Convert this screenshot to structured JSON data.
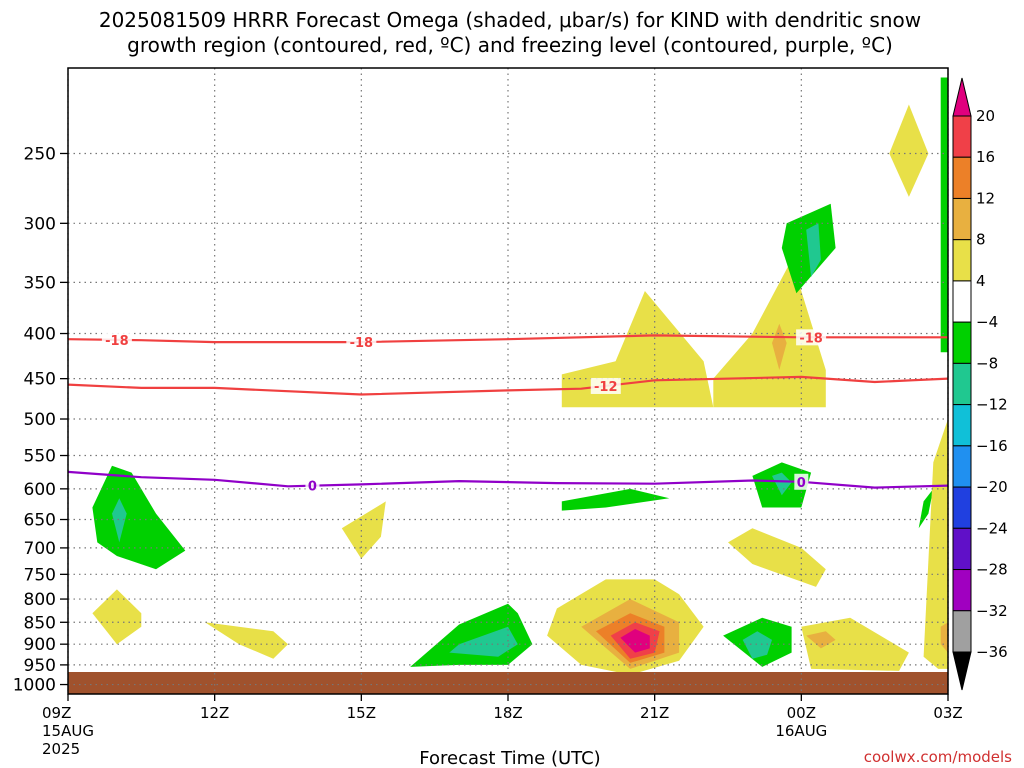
{
  "chart_data": {
    "type": "heatmap",
    "title_line1": "2025081509 HRRR Forecast Omega (shaded, μbar/s) for KIND with dendritic snow",
    "title_line2": "growth region (contoured, red, ºC) and freezing level (contoured, purple, ºC)",
    "xlabel": "Forecast Time (UTC)",
    "credit": "coolwx.com/models",
    "x_ticks": [
      {
        "hour": 0,
        "label": "09Z",
        "sub1": "15AUG",
        "sub2": "2025"
      },
      {
        "hour": 3,
        "label": "12Z",
        "sub1": "",
        "sub2": ""
      },
      {
        "hour": 6,
        "label": "15Z",
        "sub1": "",
        "sub2": ""
      },
      {
        "hour": 9,
        "label": "18Z",
        "sub1": "",
        "sub2": ""
      },
      {
        "hour": 12,
        "label": "21Z",
        "sub1": "",
        "sub2": ""
      },
      {
        "hour": 15,
        "label": "00Z",
        "sub1": "16AUG",
        "sub2": ""
      },
      {
        "hour": 18,
        "label": "03Z",
        "sub1": "",
        "sub2": ""
      }
    ],
    "xlim_hours": [
      0,
      18
    ],
    "y_ticks": [
      250,
      300,
      350,
      400,
      450,
      500,
      550,
      600,
      650,
      700,
      750,
      800,
      850,
      900,
      950,
      1000
    ],
    "ylim_mb": [
      200,
      1025
    ],
    "y_scale": "log",
    "grid": "dotted",
    "colorbar": {
      "labels": [
        "20",
        "16",
        "12",
        "8",
        "4",
        "−4",
        "−8",
        "−12",
        "−16",
        "−20",
        "−24",
        "−28",
        "−32",
        "−36"
      ],
      "colors": [
        "#e0007e",
        "#f04048",
        "#ec8028",
        "#e8b040",
        "#e8e048",
        "#ffffff",
        "#00d000",
        "#20c890",
        "#10c0d8",
        "#2090f0",
        "#2040e0",
        "#6010c8",
        "#a000c0",
        "#a0a0a0",
        "#000000"
      ]
    },
    "contours": [
      {
        "name": "-18",
        "color": "#f04040",
        "hour": [
          0,
          1.5,
          3,
          6,
          9,
          12,
          15,
          18
        ],
        "mb": [
          406,
          407,
          409,
          409,
          406,
          402,
          404,
          404
        ],
        "labels": [
          {
            "hour": 1.0,
            "text": "-18"
          },
          {
            "hour": 6.0,
            "text": "-18"
          },
          {
            "hour": 15.2,
            "text": "-18"
          }
        ]
      },
      {
        "name": "-12",
        "color": "#f04040",
        "hour": [
          0,
          1.5,
          3,
          6,
          9,
          10.5,
          12,
          15,
          16.5,
          18
        ],
        "mb": [
          457,
          461,
          461,
          469,
          464,
          462,
          452,
          448,
          454,
          450
        ],
        "labels": [
          {
            "hour": 11.0,
            "text": "-12"
          }
        ]
      },
      {
        "name": "0",
        "color": "#9000c8",
        "hour": [
          0,
          1.5,
          3,
          4.5,
          6,
          8,
          10,
          12,
          14,
          15,
          16.5,
          18
        ],
        "mb": [
          574,
          582,
          586,
          596,
          593,
          588,
          591,
          592,
          587,
          589,
          598,
          595
        ],
        "labels": [
          {
            "hour": 5.0,
            "text": "0"
          },
          {
            "hour": 15.0,
            "text": "0"
          }
        ]
      }
    ],
    "regions": [
      {
        "color": "#00d000",
        "hour": [
          0.5,
          0.9,
          1.3,
          1.8,
          2.4,
          1.8,
          1.0,
          0.6,
          0.5
        ],
        "mb": [
          630,
          565,
          575,
          640,
          705,
          740,
          715,
          690,
          630
        ]
      },
      {
        "color": "#20c890",
        "hour": [
          0.9,
          1.05,
          1.2,
          1.05,
          0.9
        ],
        "mb": [
          640,
          615,
          640,
          690,
          640
        ]
      },
      {
        "color": "#e8e048",
        "hour": [
          0.5,
          1.0,
          1.5,
          1.5,
          1.0,
          0.5
        ],
        "mb": [
          830,
          780,
          830,
          860,
          900,
          830
        ]
      },
      {
        "color": "#e8e048",
        "hour": [
          2.8,
          4.2,
          4.5,
          4.2,
          3.5,
          2.8
        ],
        "mb": [
          850,
          870,
          900,
          935,
          900,
          850
        ]
      },
      {
        "color": "#e8e048",
        "hour": [
          5.6,
          6.5,
          6.4,
          6.0,
          5.6
        ],
        "mb": [
          665,
          620,
          680,
          720,
          665
        ]
      },
      {
        "color": "#00d000",
        "hour": [
          8.0,
          9.0,
          9.2,
          9.5,
          9.0,
          8.0,
          7.0,
          8.0
        ],
        "mb": [
          855,
          810,
          830,
          900,
          950,
          950,
          955,
          855
        ]
      },
      {
        "color": "#20c890",
        "hour": [
          8.0,
          9.0,
          9.2,
          8.8,
          7.8,
          8.0
        ],
        "mb": [
          900,
          860,
          900,
          930,
          920,
          900
        ]
      },
      {
        "color": "#e8e048",
        "hour": [
          10.0,
          11.0,
          12.0,
          12.5,
          13.0,
          12.5,
          11.5,
          10.5,
          9.8,
          10.0
        ],
        "mb": [
          820,
          760,
          760,
          790,
          860,
          940,
          975,
          950,
          880,
          820
        ]
      },
      {
        "color": "#e8b040",
        "hour": [
          10.5,
          11.5,
          12.5,
          12.5,
          11.5,
          10.5
        ],
        "mb": [
          860,
          800,
          850,
          920,
          960,
          860
        ]
      },
      {
        "color": "#ec8028",
        "hour": [
          10.8,
          11.5,
          12.2,
          12.2,
          11.5,
          10.8
        ],
        "mb": [
          870,
          830,
          860,
          920,
          945,
          870
        ]
      },
      {
        "color": "#f04048",
        "hour": [
          11.1,
          11.6,
          12.1,
          12.0,
          11.5,
          11.1
        ],
        "mb": [
          880,
          850,
          870,
          920,
          935,
          880
        ]
      },
      {
        "color": "#e0007e",
        "hour": [
          11.3,
          11.6,
          11.9,
          11.9,
          11.6,
          11.3
        ],
        "mb": [
          885,
          865,
          880,
          910,
          920,
          885
        ]
      },
      {
        "color": "#e8e048",
        "hour": [
          10.1,
          11.2,
          11.8,
          13.0,
          13.2,
          10.1
        ],
        "mb": [
          445,
          430,
          358,
          430,
          485,
          485
        ]
      },
      {
        "color": "#00d000",
        "hour": [
          10.1,
          11.5,
          12.3,
          11.0,
          10.1
        ],
        "mb": [
          620,
          600,
          615,
          630,
          635
        ]
      },
      {
        "color": "#e8e048",
        "hour": [
          13.2,
          14.0,
          14.8,
          15.5,
          15.5,
          13.2
        ],
        "mb": [
          450,
          400,
          330,
          440,
          485,
          485
        ]
      },
      {
        "color": "#e8b040",
        "hour": [
          14.4,
          14.55,
          14.7,
          14.55,
          14.4
        ],
        "mb": [
          410,
          390,
          410,
          440,
          410
        ]
      },
      {
        "color": "#e8e048",
        "hour": [
          13.5,
          14.0,
          15.0,
          15.5,
          15.3,
          14.0,
          13.5
        ],
        "mb": [
          690,
          665,
          700,
          740,
          775,
          730,
          690
        ]
      },
      {
        "color": "#00d000",
        "hour": [
          14.7,
          15.6,
          15.7,
          14.9,
          14.6,
          14.7
        ],
        "mb": [
          300,
          285,
          320,
          360,
          320,
          300
        ]
      },
      {
        "color": "#20c890",
        "hour": [
          15.1,
          15.35,
          15.4,
          15.2,
          15.1
        ],
        "mb": [
          305,
          300,
          330,
          345,
          305
        ]
      },
      {
        "color": "#00d000",
        "hour": [
          14.0,
          14.6,
          15.2,
          15.0,
          14.2,
          14.0
        ],
        "mb": [
          580,
          560,
          575,
          630,
          630,
          580
        ]
      },
      {
        "color": "#20c890",
        "hour": [
          14.4,
          14.6,
          14.8,
          14.6,
          14.4
        ],
        "mb": [
          580,
          575,
          590,
          610,
          580
        ]
      },
      {
        "color": "#00d000",
        "hour": [
          13.4,
          14.2,
          14.8,
          14.8,
          14.2,
          13.4
        ],
        "mb": [
          880,
          840,
          860,
          920,
          955,
          880
        ]
      },
      {
        "color": "#20c890",
        "hour": [
          13.8,
          14.1,
          14.4,
          14.3,
          14.0,
          13.8
        ],
        "mb": [
          890,
          870,
          890,
          925,
          935,
          890
        ]
      },
      {
        "color": "#e8e048",
        "hour": [
          15.0,
          16.0,
          17.2,
          17.0,
          15.2,
          15.0
        ],
        "mb": [
          860,
          840,
          920,
          965,
          960,
          860
        ]
      },
      {
        "color": "#e8b040",
        "hour": [
          15.1,
          15.5,
          15.7,
          15.4,
          15.1
        ],
        "mb": [
          880,
          870,
          890,
          910,
          880
        ]
      },
      {
        "color": "#e8e048",
        "hour": [
          16.8,
          17.2,
          17.6,
          17.2,
          16.8
        ],
        "mb": [
          250,
          220,
          250,
          280,
          250
        ]
      },
      {
        "color": "#00d000",
        "hour": [
          17.5,
          17.7,
          17.6,
          17.4,
          17.5
        ],
        "mb": [
          620,
          600,
          640,
          665,
          620
        ]
      },
      {
        "color": "#00d000",
        "hour": [
          17.85,
          18.0,
          18.0,
          17.85
        ],
        "mb": [
          205,
          205,
          420,
          420
        ]
      },
      {
        "color": "#e8e048",
        "hour": [
          17.7,
          18.0,
          18.0,
          17.8,
          17.5,
          17.7
        ],
        "mb": [
          560,
          500,
          960,
          960,
          930,
          560
        ]
      },
      {
        "color": "#e8b040",
        "hour": [
          17.85,
          18.0,
          18.0,
          17.85
        ],
        "mb": [
          860,
          850,
          920,
          900
        ]
      }
    ]
  }
}
